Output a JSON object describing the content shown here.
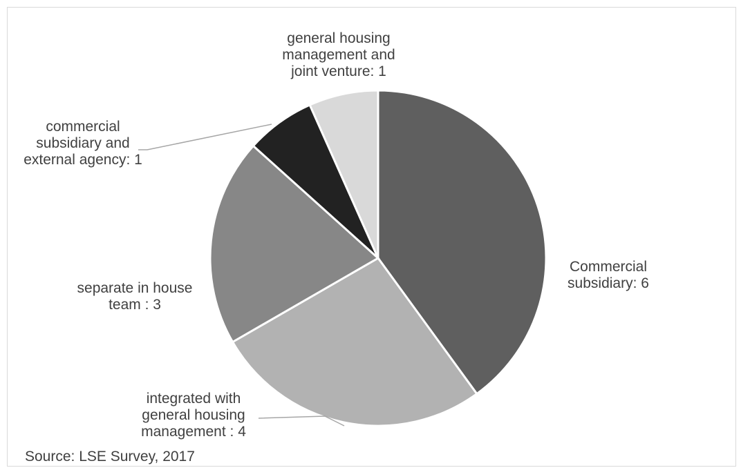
{
  "chart_data": {
    "type": "pie",
    "title": "",
    "slices": [
      {
        "label": "Commercial subsidiary",
        "value": 6,
        "color": "#5f5f5f",
        "display": "Commercial\nsubsidiary: 6"
      },
      {
        "label": "integrated with general housing management",
        "value": 4,
        "color": "#b2b2b2",
        "display": "integrated with\ngeneral housing\nmanagement : 4"
      },
      {
        "label": "separate in house team",
        "value": 3,
        "color": "#878787",
        "display": "separate in house\nteam : 3"
      },
      {
        "label": "commercial subsidiary and external agency",
        "value": 1,
        "color": "#222222",
        "display": "commercial\nsubsidiary and\nexternal agency: 1"
      },
      {
        "label": "general housing management and joint venture",
        "value": 1,
        "color": "#d9d9d9",
        "display": "general housing\nmanagement and\njoint venture: 1"
      }
    ],
    "legend": "none",
    "data_labels": "outside"
  },
  "source": "Source: LSE Survey, 2017"
}
